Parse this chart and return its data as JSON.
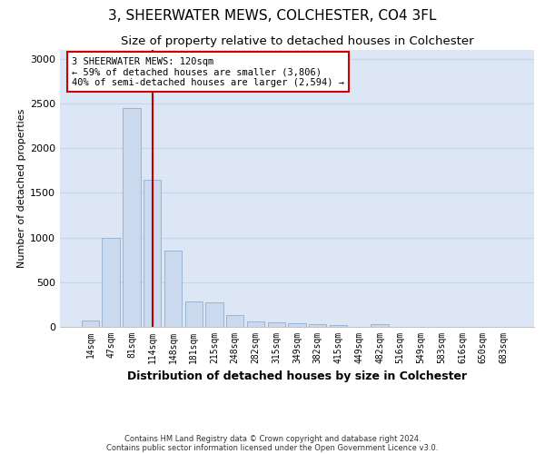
{
  "title": "3, SHEERWATER MEWS, COLCHESTER, CO4 3FL",
  "subtitle": "Size of property relative to detached houses in Colchester",
  "xlabel": "Distribution of detached houses by size in Colchester",
  "ylabel": "Number of detached properties",
  "categories": [
    "14sqm",
    "47sqm",
    "81sqm",
    "114sqm",
    "148sqm",
    "181sqm",
    "215sqm",
    "248sqm",
    "282sqm",
    "315sqm",
    "349sqm",
    "382sqm",
    "415sqm",
    "449sqm",
    "482sqm",
    "516sqm",
    "549sqm",
    "583sqm",
    "616sqm",
    "650sqm",
    "683sqm"
  ],
  "values": [
    75,
    1000,
    2450,
    1650,
    850,
    280,
    270,
    130,
    60,
    50,
    45,
    35,
    25,
    0,
    30,
    0,
    0,
    0,
    0,
    0,
    0
  ],
  "bar_color": "#cad9ed",
  "bar_edge_color": "#9ab5d4",
  "grid_color": "#c8d4e8",
  "bg_color": "#dce6f5",
  "vline_color": "#bb0000",
  "annotation_text": "3 SHEERWATER MEWS: 120sqm\n← 59% of detached houses are smaller (3,806)\n40% of semi-detached houses are larger (2,594) →",
  "annotation_box_edge": "#cc0000",
  "footer_line1": "Contains HM Land Registry data © Crown copyright and database right 2024.",
  "footer_line2": "Contains public sector information licensed under the Open Government Licence v3.0.",
  "ylim": [
    0,
    3100
  ],
  "yticks": [
    0,
    500,
    1000,
    1500,
    2000,
    2500,
    3000
  ],
  "title_fontsize": 11,
  "subtitle_fontsize": 9.5,
  "ylabel_fontsize": 8
}
